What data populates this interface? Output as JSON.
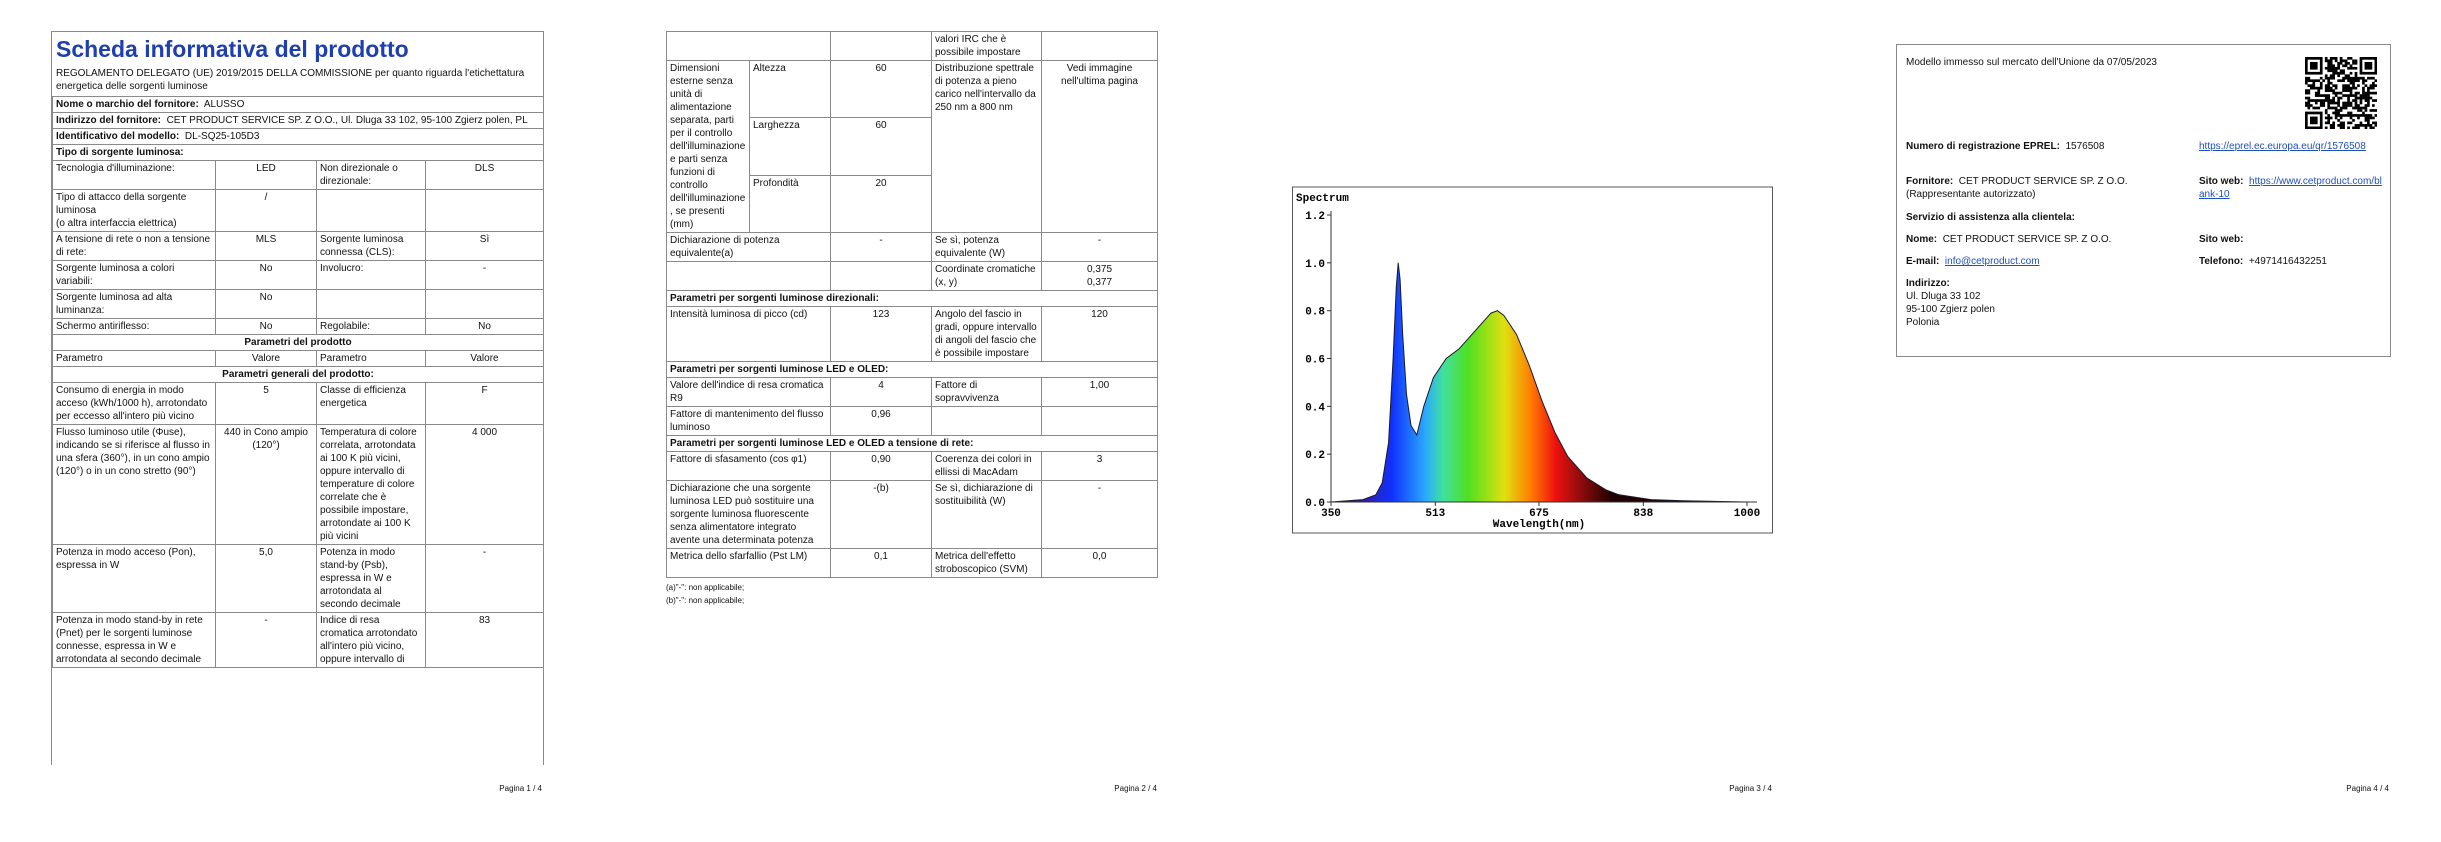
{
  "page1": {
    "title": "Scheda informativa del prodotto",
    "regulation": "REGOLAMENTO DELEGATO (UE) 2019/2015 DELLA COMMISSIONE per quanto riguarda l'etichettatura energetica delle sorgenti luminose",
    "info": [
      [
        "Nome o marchio del fornitore:",
        "ALUSSO"
      ],
      [
        "Indirizzo del fornitore:",
        "CET PRODUCT SERVICE SP. Z O.O., Ul. Dluga 33 102, 95-100 Zgierz polen, PL"
      ],
      [
        "Identificativo del modello:",
        "DL-SQ25-105D3"
      ]
    ],
    "source_type_title": "Tipo di sorgente luminosa:",
    "type_rows": [
      [
        "Tecnologia d'illuminazione:",
        "LED",
        "Non direzionale o direzionale:",
        "DLS"
      ],
      [
        "Tipo di attacco della sorgente luminosa\n(o altra interfaccia elettrica)",
        "/"
      ],
      [
        "A tensione di rete o non a tensione di rete:",
        "MLS",
        "Sorgente luminosa connessa (CLS):",
        "Sì"
      ],
      [
        "Sorgente luminosa a colori variabili:",
        "No",
        "Involucro:",
        "-"
      ],
      [
        "Sorgente luminosa ad alta luminanza:",
        "No"
      ],
      [
        "Schermo antiriflesso:",
        "No",
        "Regolabile:",
        "No"
      ]
    ],
    "params_title": "Parametri del prodotto",
    "header": [
      "Parametro",
      "Valore",
      "Parametro",
      "Valore"
    ],
    "general_title": "Parametri generali del prodotto:",
    "param_rows": [
      [
        "Consumo di energia in modo acceso (kWh/1000 h), arrotondato per eccesso all'intero più vicino",
        "5",
        "Classe di efficienza energetica",
        "F"
      ],
      [
        "Flusso luminoso utile (Φuse), indicando se si riferisce al flusso in una sfera (360°), in un cono ampio (120°) o in un cono stretto (90°)",
        "440 in Cono ampio (120°)",
        "Temperatura di colore correlata, arrotondata ai 100 K più vicini, oppure intervallo di temperature di colore correlate che è possibile impostare, arrotondate ai 100 K più vicini",
        "4 000"
      ],
      [
        "Potenza in modo acceso (Pon), espressa in W",
        "5,0",
        "Potenza in modo stand-by (Psb), espressa in W e arrotondata al secondo decimale",
        "-"
      ],
      [
        "Potenza in modo stand-by in rete (Pnet) per le sorgenti luminose connesse, espressa in W e arrotondata al secondo decimale",
        "-",
        "Indice di resa cromatica arrotondato all'intero più vicino, oppure intervallo di",
        "83"
      ]
    ],
    "footer": "Pagina 1 / 4"
  },
  "page2": {
    "cri_continued": "valori IRC che è possibile impostare",
    "dimensions": {
      "label": "Dimensioni esterne senza unità di alimentazione separata, parti per il controllo dell'illuminazione e parti senza funzioni di controllo dell'illuminazione, se presenti (mm)",
      "items": [
        [
          "Altezza",
          "60"
        ],
        [
          "Larghezza",
          "60"
        ],
        [
          "Profondità",
          "20"
        ]
      ],
      "spd_label": "Distribuzione spettrale di potenza a pieno carico nell'intervallo da 250 nm a 800 nm",
      "spd_value": "Vedi immagine nell'ultima pagina"
    },
    "equivalent_power": [
      "Dichiarazione di potenza equivalente(a)",
      "-",
      "Se sì, potenza equivalente (W)",
      "-"
    ],
    "chromaticity": [
      "Coordinate cromatiche (x, y)",
      "0,375\n0,377"
    ],
    "sections": [
      {
        "title": "Parametri per sorgenti luminose direzionali:",
        "rows": [
          [
            "Intensità luminosa di picco (cd)",
            "123",
            "Angolo del fascio in gradi, oppure intervallo di angoli del fascio che è possibile impostare",
            "120"
          ]
        ]
      },
      {
        "title": "Parametri per sorgenti luminose LED e OLED:",
        "rows": [
          [
            "Valore dell'indice di resa cromatica R9",
            "4",
            "Fattore di sopravvivenza",
            "1,00"
          ],
          [
            "Fattore di mantenimento del flusso luminoso",
            "0,96"
          ]
        ]
      },
      {
        "title": "Parametri per sorgenti luminose LED e OLED a tensione di rete:",
        "rows": [
          [
            "Fattore di sfasamento (cos φ1)",
            "0,90",
            "Coerenza dei colori in ellissi di MacAdam",
            "3"
          ],
          [
            "Dichiarazione che una sorgente luminosa LED può sostituire una sorgente luminosa fluorescente senza alimentatore integrato avente una determinata potenza",
            "-(b)",
            "Se sì, dichiarazione di sostituibilità (W)",
            "-"
          ],
          [
            "Metrica dello sfarfallio (Pst LM)",
            "0,1",
            "Metrica dell'effetto stroboscopico (SVM)",
            "0,0"
          ]
        ]
      }
    ],
    "notes": [
      "(a)\"-\": non applicabile;",
      "(b)\"-\": non applicabile;"
    ],
    "footer": "Pagina 2 / 4"
  },
  "page3": {
    "spectrum": {
      "type": "area",
      "title": "Spectrum",
      "x_label": "Wavelength(nm)",
      "x": [
        350,
        400,
        420,
        430,
        440,
        447,
        452,
        455,
        458,
        462,
        468,
        475,
        484,
        495,
        510,
        530,
        550,
        570,
        590,
        600,
        610,
        620,
        640,
        660,
        680,
        700,
        720,
        750,
        780,
        800,
        850,
        900,
        1000
      ],
      "y": [
        0,
        0.01,
        0.03,
        0.08,
        0.25,
        0.6,
        0.9,
        1.0,
        0.93,
        0.7,
        0.45,
        0.32,
        0.28,
        0.4,
        0.52,
        0.6,
        0.64,
        0.7,
        0.76,
        0.79,
        0.8,
        0.78,
        0.7,
        0.57,
        0.42,
        0.29,
        0.19,
        0.1,
        0.05,
        0.03,
        0.01,
        0.005,
        0
      ],
      "xlim": [
        350,
        1000
      ],
      "ylim": [
        0,
        1.2
      ],
      "xticks": [
        350,
        513,
        675,
        838,
        1000
      ],
      "yticks": [
        {
          "value": 0,
          "label": "0.0"
        },
        {
          "value": 0.2,
          "label": "0.2"
        },
        {
          "value": 0.4,
          "label": "0.4"
        },
        {
          "value": 0.6,
          "label": "0.6"
        },
        {
          "value": 0.8,
          "label": "0.8"
        },
        {
          "value": 1.0,
          "label": "1.0"
        },
        {
          "value": 1.2,
          "label": "1.2"
        }
      ]
    },
    "footer": "Pagina 3 / 4"
  },
  "page4": {
    "placed_on_market": "Modello immesso sul mercato dell'Unione da 07/05/2023",
    "eprel_label": "Numero di registrazione EPREL:",
    "eprel_number": "1576508",
    "eprel_link": "https://eprel.ec.europa.eu/qr/1576508",
    "supplier_label": "Fornitore:",
    "supplier_value": "CET PRODUCT SERVICE SP. Z O.O. (Rappresentante autorizzato)",
    "website_label": "Sito web:",
    "website_link": "https://www.cetproduct.com/blank-10",
    "service_title": "Servizio di assistenza alla clientela:",
    "name_label": "Nome:",
    "name_value": "CET PRODUCT SERVICE SP. Z O.O.",
    "service_website_label": "Sito web:",
    "email_label": "E-mail:",
    "email_value": "info@cetproduct.com",
    "phone_label": "Telefono:",
    "phone_value": "+4971416432251",
    "address_label": "Indirizzo:",
    "address_lines": [
      "Ul. Dluga 33 102",
      "95-100 Zgierz polen",
      "Polonia"
    ],
    "footer": "Pagina 4 / 4"
  }
}
